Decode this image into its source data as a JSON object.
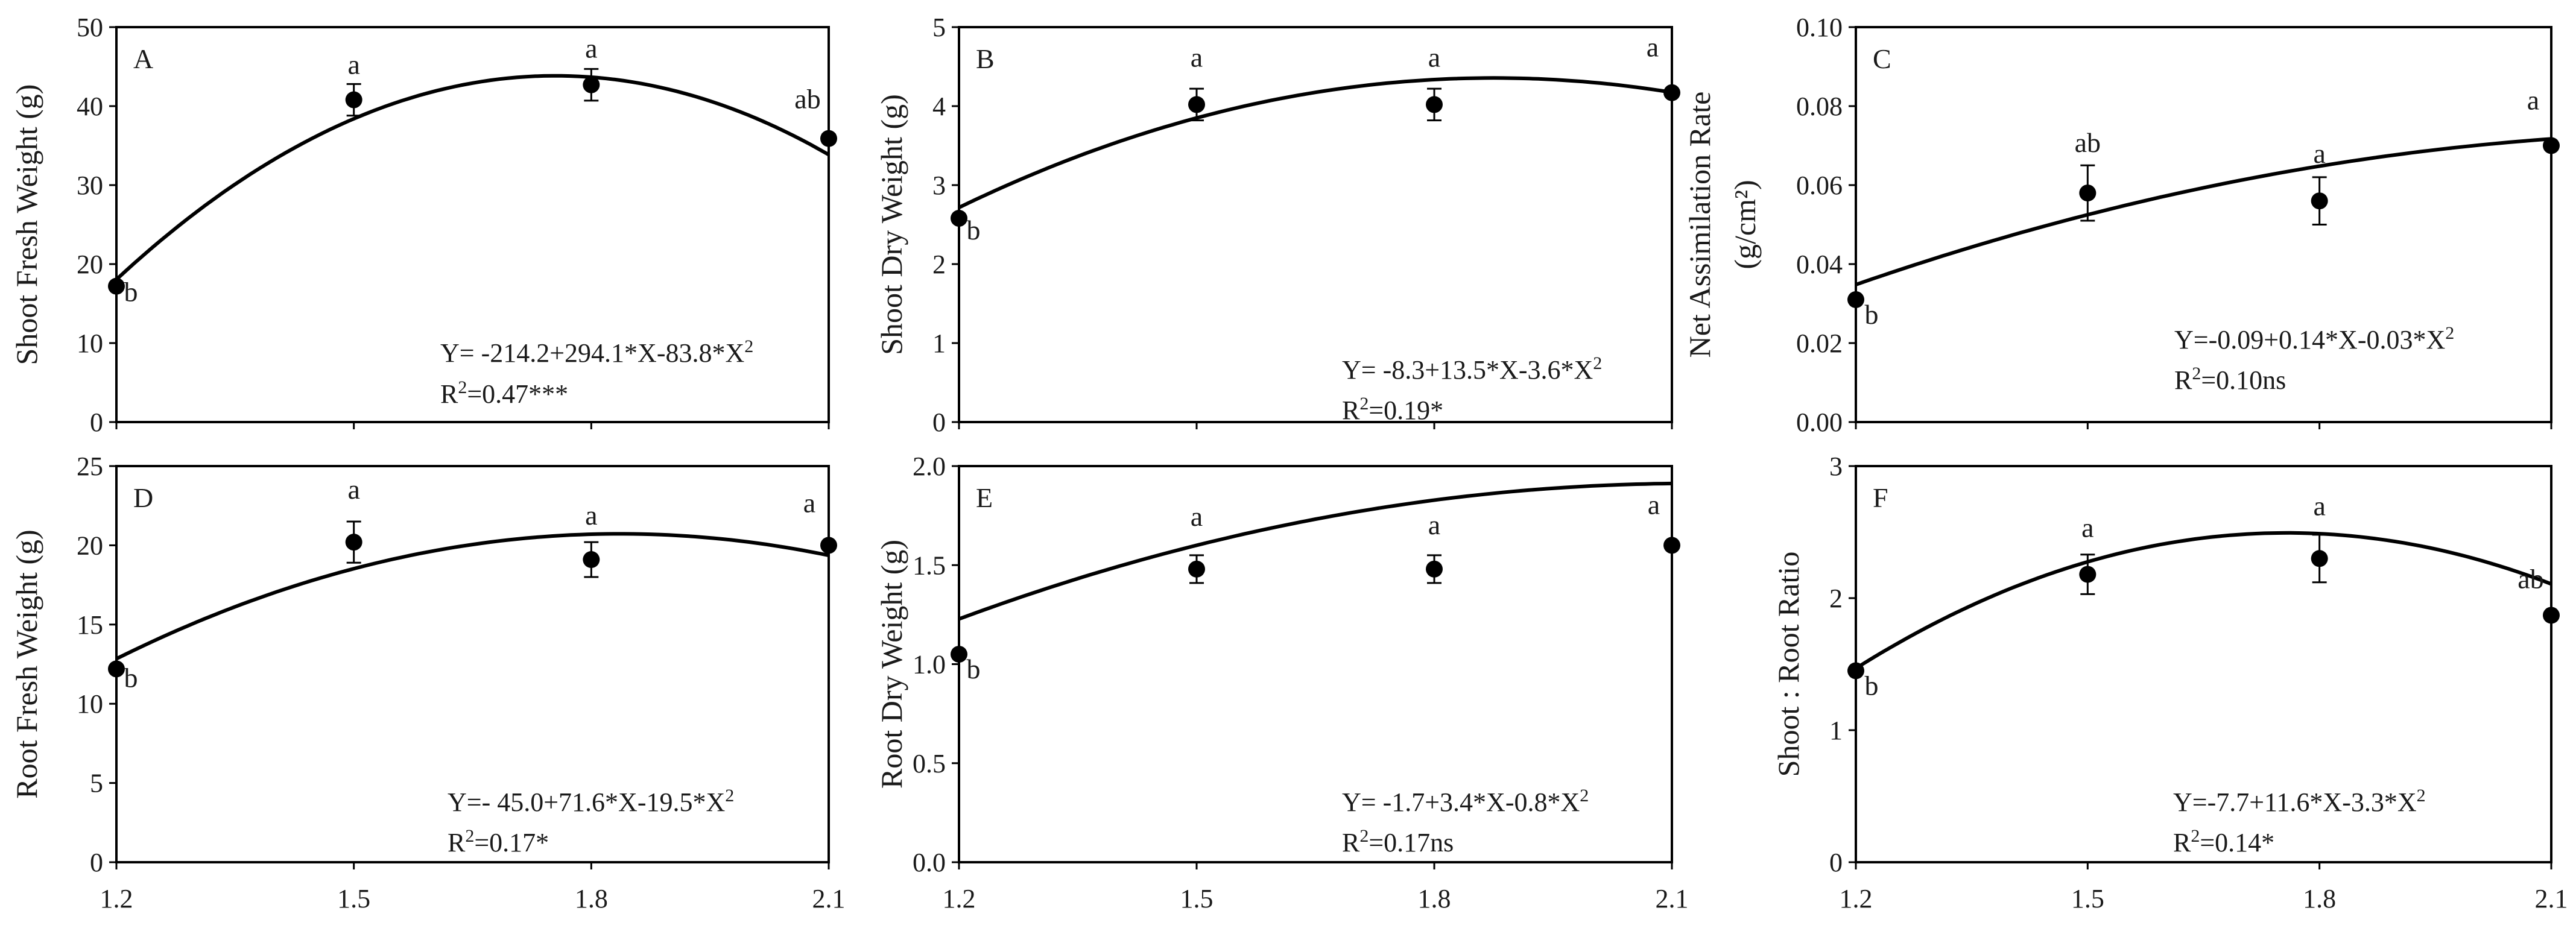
{
  "chart_data": [
    {
      "type": "scatter",
      "panel": "A",
      "ylabel": "Shoot Fresh Weight (g)",
      "x": [
        1.2,
        1.5,
        1.8,
        2.1
      ],
      "y": [
        17.2,
        40.8,
        42.7,
        35.9
      ],
      "err": [
        0,
        2,
        2,
        0.5
      ],
      "letters": [
        "b",
        "a",
        "a",
        "ab"
      ],
      "ylim": [
        0,
        50
      ],
      "yticks": [
        "0",
        "10",
        "20",
        "30",
        "40",
        "50"
      ],
      "xticks": [
        "1.2",
        "1.5",
        "1.8",
        "2.1"
      ],
      "coef": [
        -214.2,
        294.1,
        -83.8
      ],
      "fit_start": 1.2,
      "eq_prefix": "Y= -214.2+294.1*X-83.8*X",
      "r2_value": "=0.47***"
    },
    {
      "type": "scatter",
      "panel": "B",
      "ylabel": "Shoot Dry Weight (g)",
      "x": [
        1.2,
        1.5,
        1.8,
        2.1
      ],
      "y": [
        2.58,
        4.02,
        4.02,
        4.17
      ],
      "err": [
        0,
        0.2,
        0.2,
        0
      ],
      "letters": [
        "b",
        "a",
        "a",
        "a"
      ],
      "ylim": [
        0,
        5
      ],
      "yticks": [
        "0",
        "1",
        "2",
        "3",
        "4",
        "5"
      ],
      "xticks": [
        "1.2",
        "1.5",
        "1.8",
        "2.1"
      ],
      "coef": [
        -8.3,
        13.5,
        -3.6
      ],
      "fit_start": 1.2,
      "eq_prefix": "Y= -8.3+13.5*X-3.6*X",
      "r2_value": "=0.19*"
    },
    {
      "type": "scatter",
      "panel": "C",
      "ylabel": "Net Assimilation Rate",
      "ylabel_unit": "(g/cm²)",
      "x": [
        1.2,
        1.5,
        1.8,
        2.1
      ],
      "y": [
        0.031,
        0.058,
        0.056,
        0.07
      ],
      "err": [
        0,
        0.007,
        0.006,
        0
      ],
      "letters": [
        "b",
        "ab",
        "a",
        "a"
      ],
      "ylim": [
        0,
        0.1
      ],
      "yticks": [
        "0.00",
        "0.02",
        "0.04",
        "0.06",
        "0.08",
        "0.10"
      ],
      "xticks": [
        "1.2",
        "1.5",
        "1.8",
        "2.1"
      ],
      "coef": [
        -0.09,
        0.14,
        -0.03
      ],
      "fit_start": 1.2,
      "eq_prefix": "Y=-0.09+0.14*X-0.03*X",
      "r2_value": "=0.10ns"
    },
    {
      "type": "scatter",
      "panel": "D",
      "ylabel": "Root Fresh Weight (g)",
      "x": [
        1.2,
        1.5,
        1.8,
        2.1
      ],
      "y": [
        12.2,
        20.2,
        19.1,
        20.0
      ],
      "err": [
        0,
        1.3,
        1.1,
        0
      ],
      "letters": [
        "b",
        "a",
        "a",
        "a"
      ],
      "ylim": [
        0,
        25
      ],
      "yticks": [
        "0",
        "5",
        "10",
        "15",
        "20",
        "25"
      ],
      "xticks": [
        "1.2",
        "1.5",
        "1.8",
        "2.1"
      ],
      "coef": [
        -45.0,
        71.6,
        -19.5
      ],
      "fit_start": 1.2,
      "eq_prefix": "Y=- 45.0+71.6*X-19.5*X",
      "r2_value": "=0.17*"
    },
    {
      "type": "scatter",
      "panel": "E",
      "ylabel": "Root Dry Weight (g)",
      "x": [
        1.2,
        1.5,
        1.8,
        2.1
      ],
      "y": [
        1.05,
        1.48,
        1.48,
        1.6
      ],
      "err": [
        0,
        0.07,
        0.07,
        0
      ],
      "letters": [
        "b",
        "a",
        "a",
        "a"
      ],
      "ylim": [
        0,
        2.0
      ],
      "yticks": [
        "0.0",
        "0.5",
        "1.0",
        "1.5",
        "2.0"
      ],
      "xticks": [
        "1.2",
        "1.5",
        "1.8",
        "2.1"
      ],
      "coef": [
        -1.7,
        3.4,
        -0.8
      ],
      "fit_start": 1.2,
      "eq_prefix": "Y= -1.7+3.4*X-0.8*X",
      "r2_value": "=0.17ns"
    },
    {
      "type": "scatter",
      "panel": "F",
      "ylabel": "Shoot : Root Ratio",
      "x": [
        1.2,
        1.5,
        1.8,
        2.1
      ],
      "y": [
        1.45,
        2.18,
        2.3,
        1.87
      ],
      "err": [
        0,
        0.15,
        0.18,
        0
      ],
      "letters": [
        "b",
        "a",
        "a",
        "ab"
      ],
      "ylim": [
        0,
        3
      ],
      "yticks": [
        "0",
        "1",
        "2",
        "3"
      ],
      "xticks": [
        "1.2",
        "1.5",
        "1.8",
        "2.1"
      ],
      "coef": [
        -7.7,
        11.6,
        -3.3
      ],
      "fit_start": 1.2,
      "eq_prefix": "Y=-7.7+11.6*X-3.3*X",
      "r2_value": "=0.14*"
    }
  ],
  "eq_superscript": "2",
  "r2_prefix": "R"
}
